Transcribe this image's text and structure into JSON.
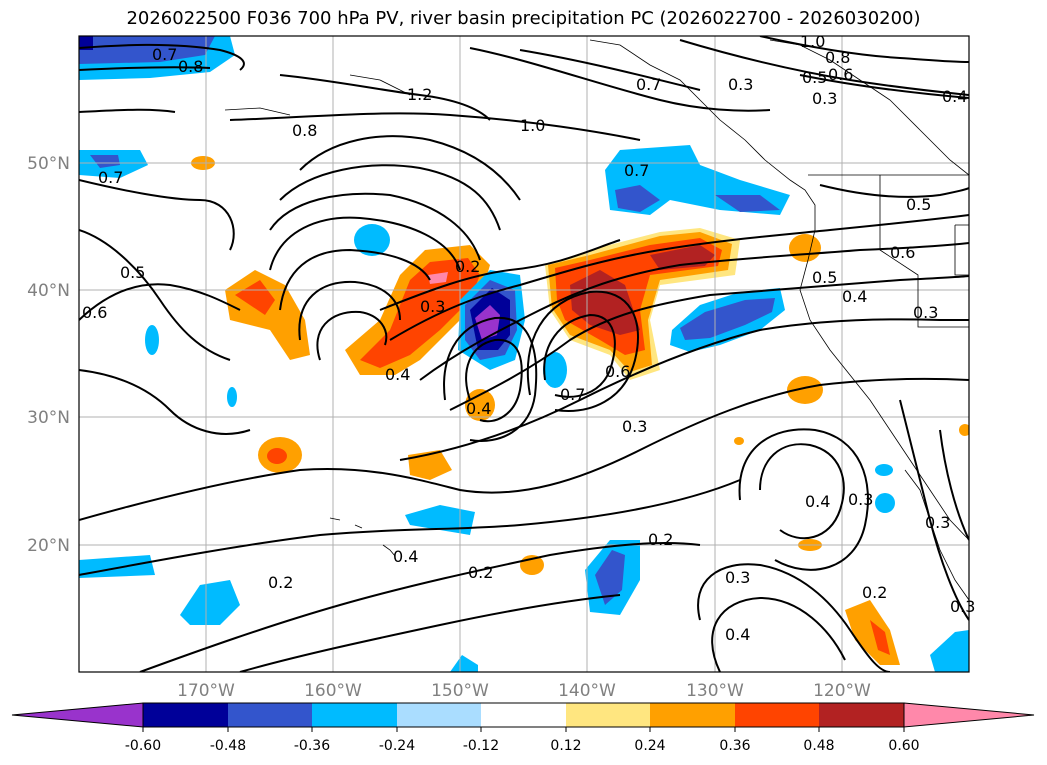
{
  "title": "2026022500 F036 700 hPa PV, river basin precipitation PC (2026022700 - 2026030200)",
  "lat_labels": [
    "50°N",
    "40°N",
    "30°N",
    "20°N"
  ],
  "lon_labels": [
    "170°W",
    "160°W",
    "150°W",
    "140°W",
    "130°W",
    "120°W"
  ],
  "colorbar": {
    "tick_labels": [
      "-0.60",
      "-0.48",
      "-0.36",
      "-0.24",
      "-0.12",
      "0.12",
      "0.24",
      "0.36",
      "0.48",
      "0.60"
    ],
    "colors": [
      "#9933cc",
      "#000099",
      "#3355cc",
      "#00bbff",
      "#aaddff",
      "#ffffff",
      "#ffe680",
      "#ffa000",
      "#ff4400",
      "#b22222",
      "#ff88aa"
    ]
  },
  "contour_labels": [
    "0.7",
    "0.8",
    "1.2",
    "0.8",
    "1.0",
    "1.0",
    "0.8",
    "0.5",
    "0.6",
    "0.3",
    "0.4",
    "0.3",
    "0.7",
    "0.7",
    "0.5",
    "0.6",
    "0.2",
    "0.3",
    "0.4",
    "0.4",
    "0.6",
    "0.7",
    "0.5",
    "0.6",
    "0.5",
    "0.4",
    "0.3",
    "0.3",
    "0.4",
    "0.3",
    "0.3",
    "0.2",
    "0.2",
    "0.4",
    "0.2",
    "0.3",
    "0.4",
    "0.2",
    "0.3",
    "0.7"
  ]
}
